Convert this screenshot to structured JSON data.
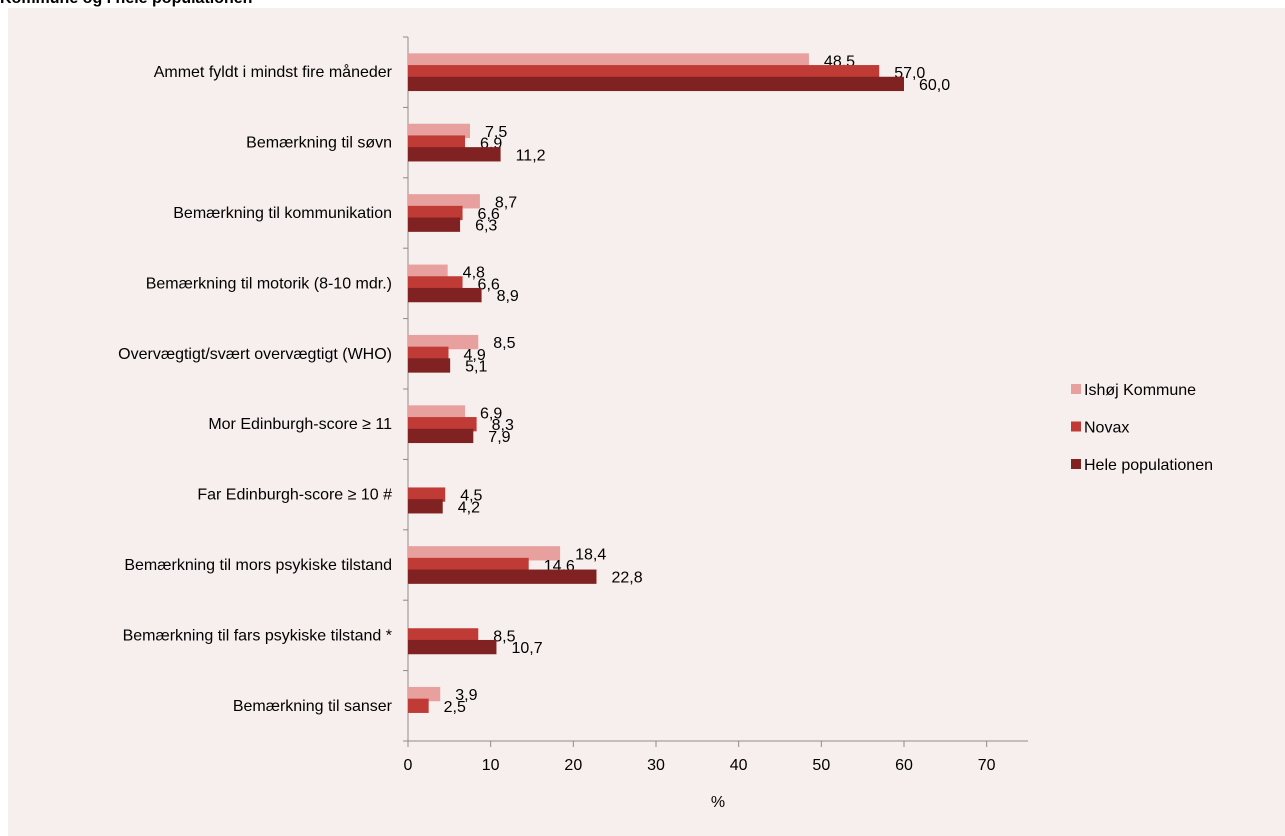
{
  "title": "Kommune og i hele populationen",
  "chart_data": {
    "type": "bar",
    "orientation": "horizontal",
    "xlabel": "%",
    "xlim": [
      0,
      75
    ],
    "xticks": [
      0,
      10,
      20,
      30,
      40,
      50,
      60,
      70
    ],
    "legend_position": "right",
    "categories": [
      "Ammet fyldt i mindst fire måneder",
      "Bemærkning til søvn",
      "Bemærkning til kommunikation",
      "Bemærkning til motorik (8-10 mdr.)",
      "Overvægtigt/svært overvægtigt (WHO)",
      "Mor Edinburgh-score ≥ 11",
      "Far Edinburgh-score ≥ 10 #",
      "Bemærkning til mors psykiske tilstand",
      "Bemærkning til fars psykiske tilstand *",
      "Bemærkning til sanser"
    ],
    "series": [
      {
        "name": "Ishøj Kommune",
        "color": "#e8a09e",
        "values": [
          48.5,
          7.5,
          8.7,
          4.8,
          8.5,
          6.9,
          null,
          18.4,
          null,
          3.9
        ],
        "labels": [
          "48,5",
          "7,5",
          "8,7",
          "4,8",
          "8,5",
          "6,9",
          null,
          "18,4",
          null,
          "3,9"
        ]
      },
      {
        "name": "Novax",
        "color": "#c03a36",
        "values": [
          57.0,
          6.9,
          6.6,
          6.6,
          4.9,
          8.3,
          4.5,
          14.6,
          8.5,
          2.5
        ],
        "labels": [
          "57,0",
          "6,9",
          "6,6",
          "6,6",
          "4,9",
          "8,3",
          "4,5",
          "14,6",
          "8,5",
          "2,5"
        ]
      },
      {
        "name": "Hele populationen",
        "color": "#7f2221",
        "values": [
          60.0,
          11.2,
          6.3,
          8.9,
          5.1,
          7.9,
          4.2,
          22.8,
          10.7,
          null
        ],
        "labels": [
          "60,0",
          "11,2",
          "6,3",
          "8,9",
          "5,1",
          "7,9",
          "4,2",
          "22,8",
          "10,7",
          null
        ]
      }
    ]
  }
}
